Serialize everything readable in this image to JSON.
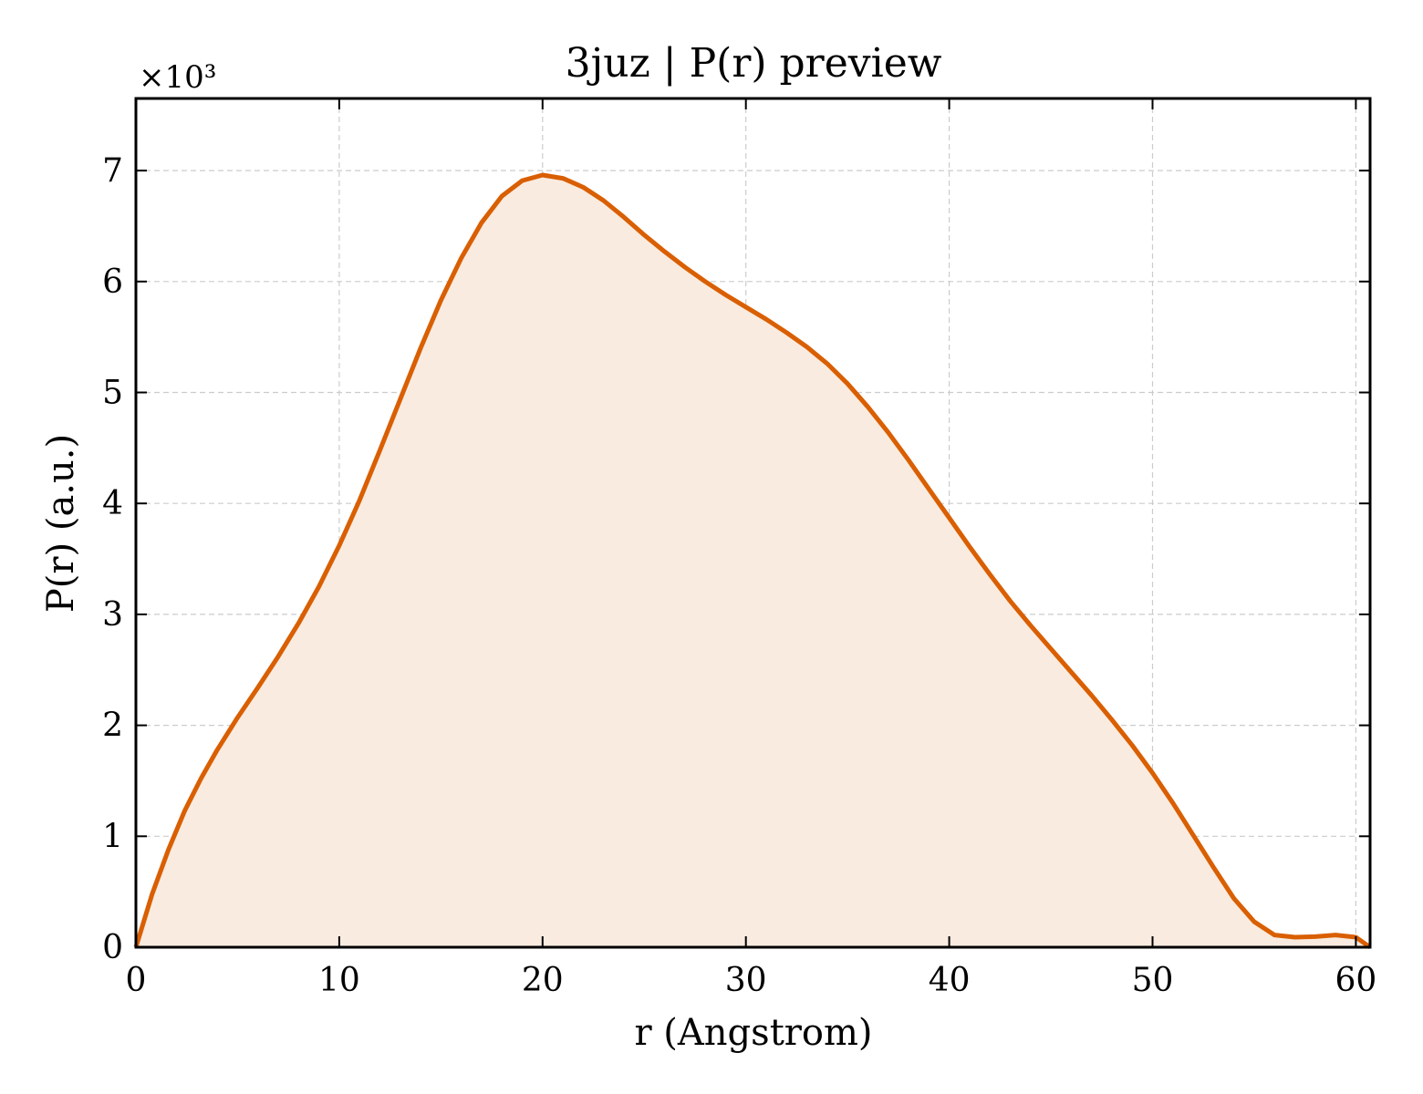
{
  "chart_data": {
    "type": "area",
    "title": "3juz | P(r) preview",
    "xlabel": "r (Angstrom)",
    "ylabel": "P(r) (a.u.)",
    "y_multiplier_label": "×10³",
    "xlim": [
      0,
      60.7
    ],
    "ylim": [
      0,
      7650
    ],
    "xticks": [
      0,
      10,
      20,
      30,
      40,
      50,
      60
    ],
    "yticks": [
      0,
      1000,
      2000,
      3000,
      4000,
      5000,
      6000,
      7000
    ],
    "xtick_labels": [
      "0",
      "10",
      "20",
      "30",
      "40",
      "50",
      "60"
    ],
    "ytick_labels": [
      "0",
      "1",
      "2",
      "3",
      "4",
      "5",
      "6",
      "7"
    ],
    "grid": true,
    "line_color": "#d95f02",
    "fill_color": "#f9ebe0",
    "series": [
      {
        "x": [
          0,
          0.8,
          1.6,
          2.4,
          3.2,
          4.0,
          5.0,
          6.0,
          7.0,
          8.0,
          9.0,
          10.0,
          11.0,
          12.0,
          13.0,
          14.0,
          15.0,
          16.0,
          17.0,
          18.0,
          19.0,
          20.0,
          21.0,
          22.0,
          23.0,
          24.0,
          25.0,
          26.0,
          27.0,
          28.0,
          29.0,
          30.0,
          31.0,
          32.0,
          33.0,
          34.0,
          35.0,
          36.0,
          37.0,
          38.0,
          39.0,
          40.0,
          41.0,
          42.0,
          43.0,
          44.0,
          45.0,
          46.0,
          47.0,
          48.0,
          49.0,
          50.0,
          51.0,
          52.0,
          53.0,
          54.0,
          55.0,
          56.0,
          57.0,
          58.0,
          59.0,
          60.0,
          60.7
        ],
        "y": [
          0,
          480,
          880,
          1230,
          1520,
          1780,
          2070,
          2340,
          2620,
          2920,
          3250,
          3620,
          4030,
          4480,
          4940,
          5400,
          5830,
          6210,
          6530,
          6770,
          6910,
          6960,
          6930,
          6850,
          6730,
          6580,
          6420,
          6270,
          6130,
          6000,
          5880,
          5770,
          5660,
          5540,
          5410,
          5260,
          5080,
          4870,
          4640,
          4390,
          4130,
          3870,
          3610,
          3360,
          3120,
          2900,
          2690,
          2480,
          2270,
          2050,
          1820,
          1570,
          1300,
          1010,
          720,
          440,
          230,
          110,
          90,
          95,
          110,
          90,
          0
        ]
      }
    ]
  }
}
